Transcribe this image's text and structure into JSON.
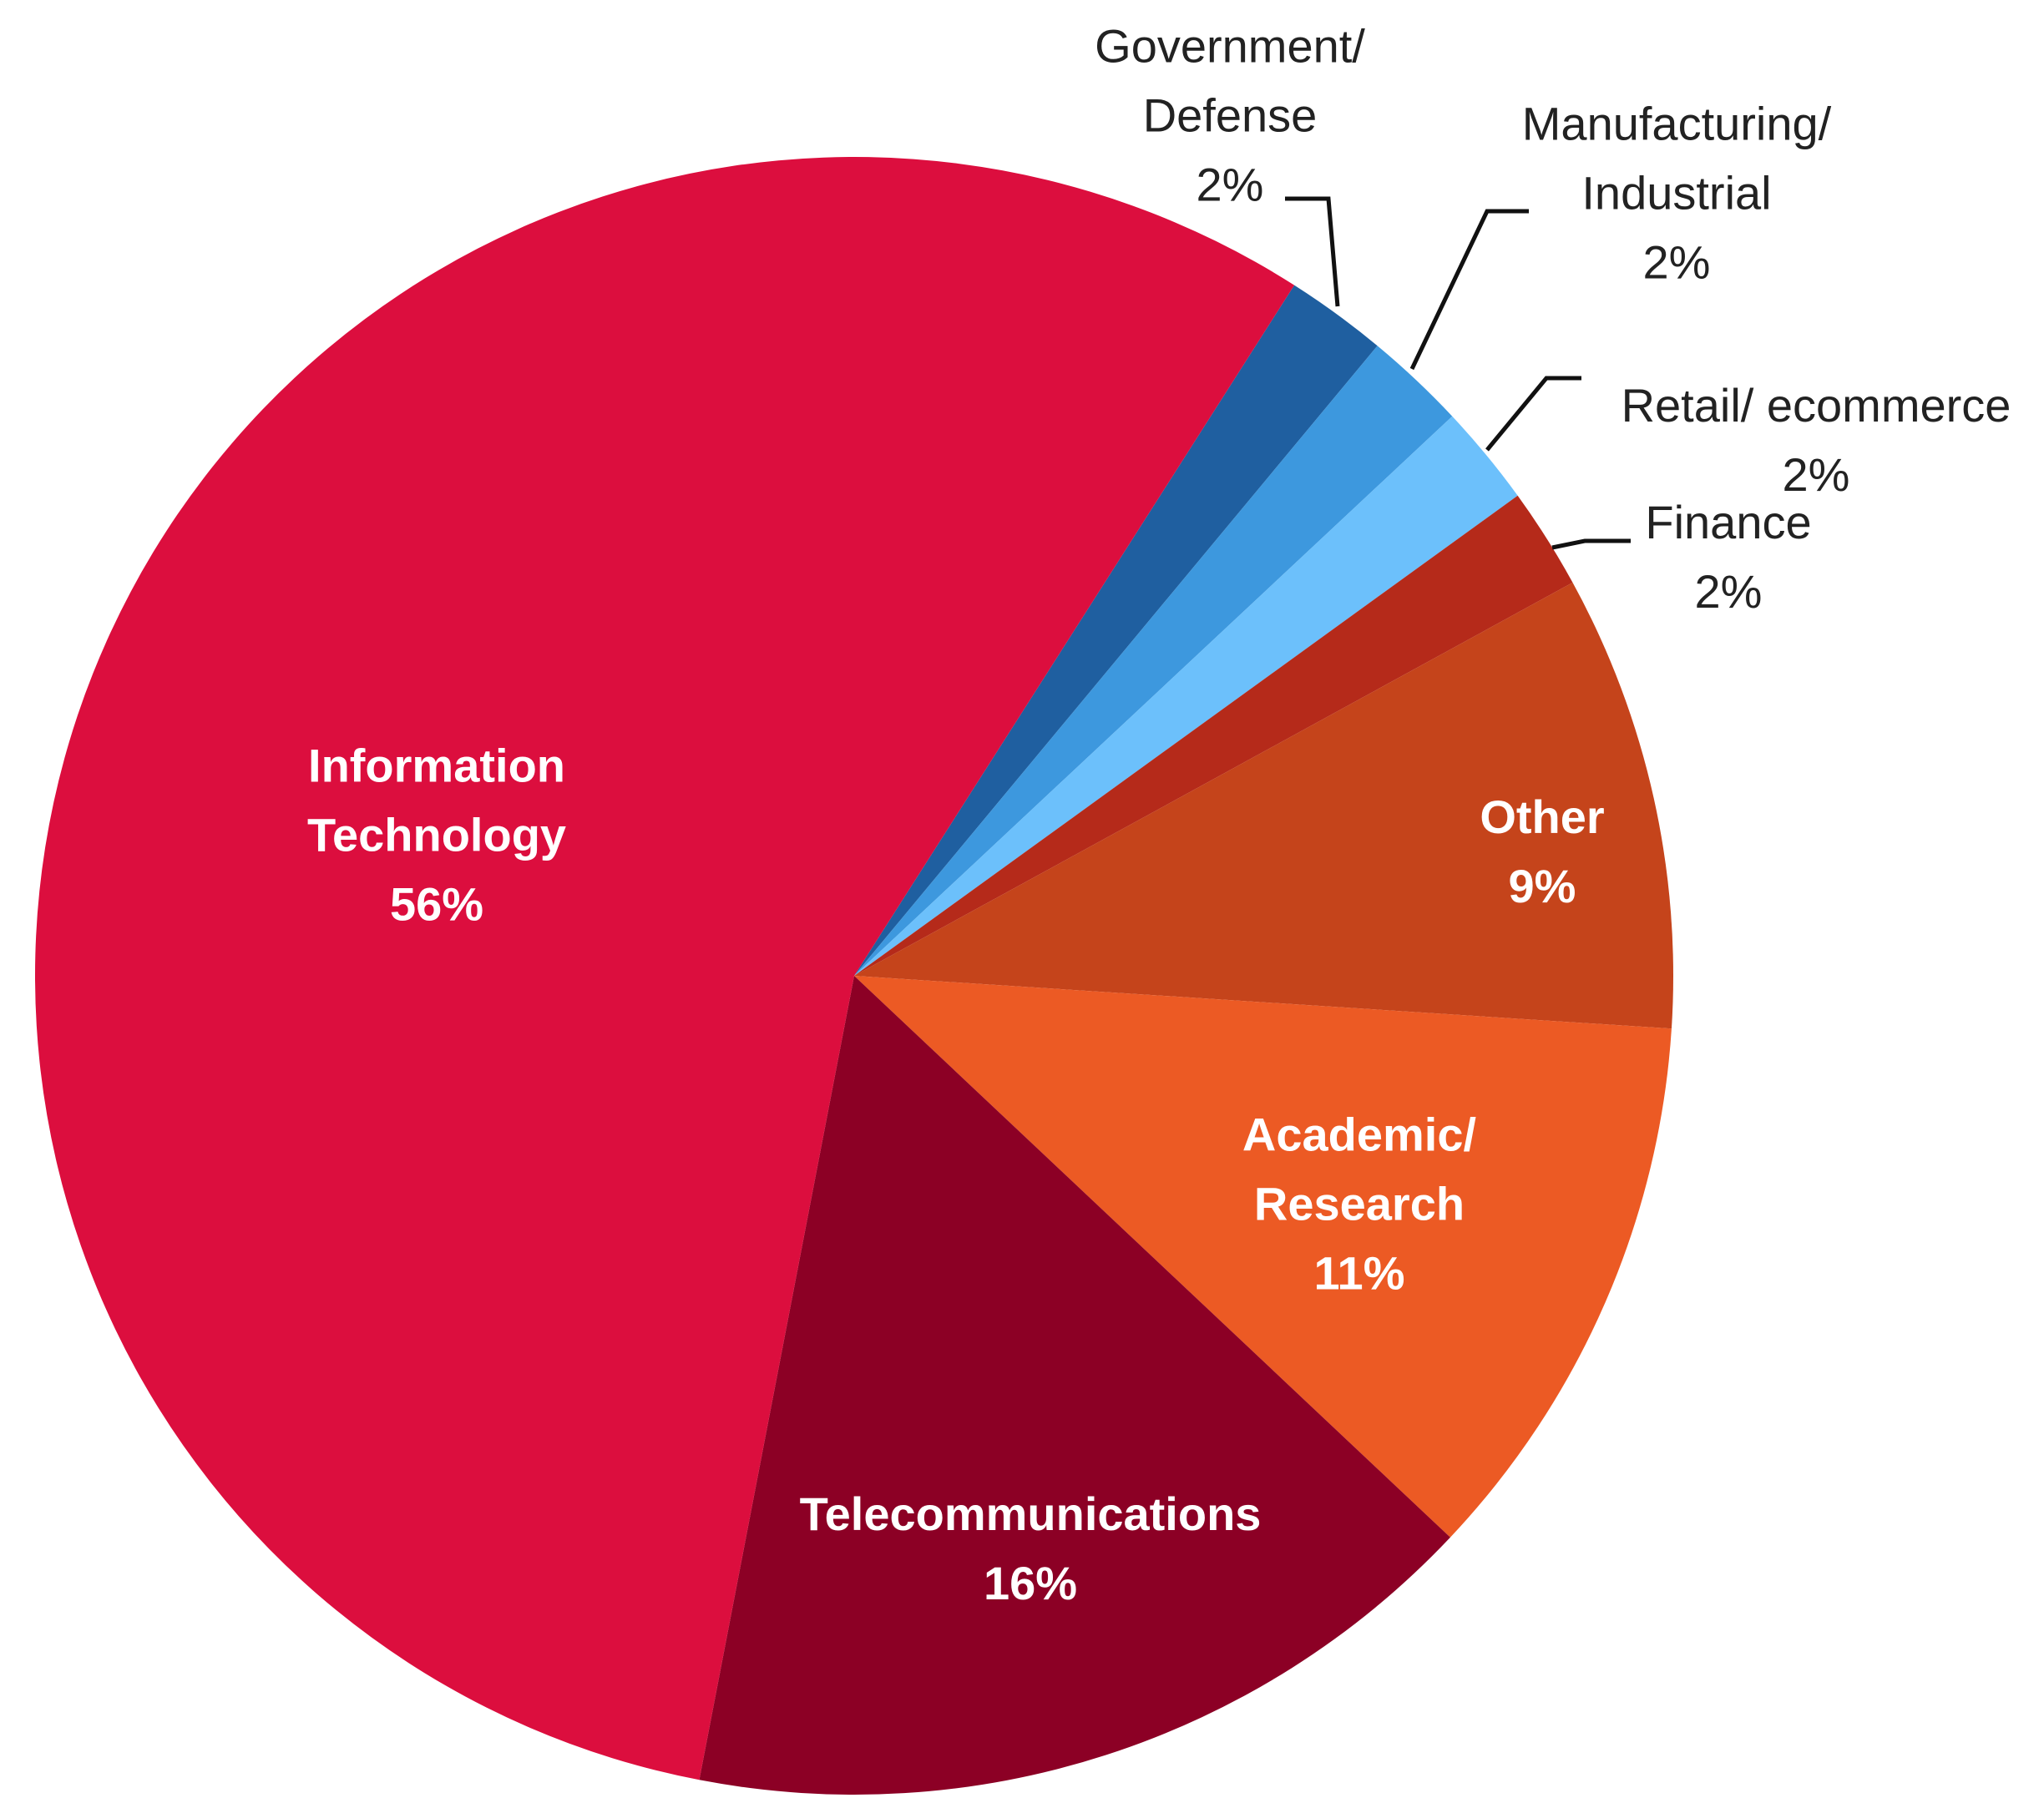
{
  "chart_data": {
    "type": "pie",
    "categories": [
      "Government/ Defense",
      "Manufacturing/ Industrial",
      "Retail/ ecommerce",
      "Finance",
      "Other",
      "Academic/ Research",
      "Telecommunications",
      "Information Technology"
    ],
    "values": [
      2,
      2,
      2,
      2,
      9,
      11,
      16,
      56
    ],
    "value_labels": [
      "2%",
      "2%",
      "2%",
      "2%",
      "9%",
      "11%",
      "16%",
      "56%"
    ],
    "colors": [
      "#1f5fa0",
      "#3d98de",
      "#6cc0fb",
      "#b52a1a",
      "#c5441b",
      "#ec5a24",
      "#8c0025",
      "#dc0e3e"
    ]
  }
}
